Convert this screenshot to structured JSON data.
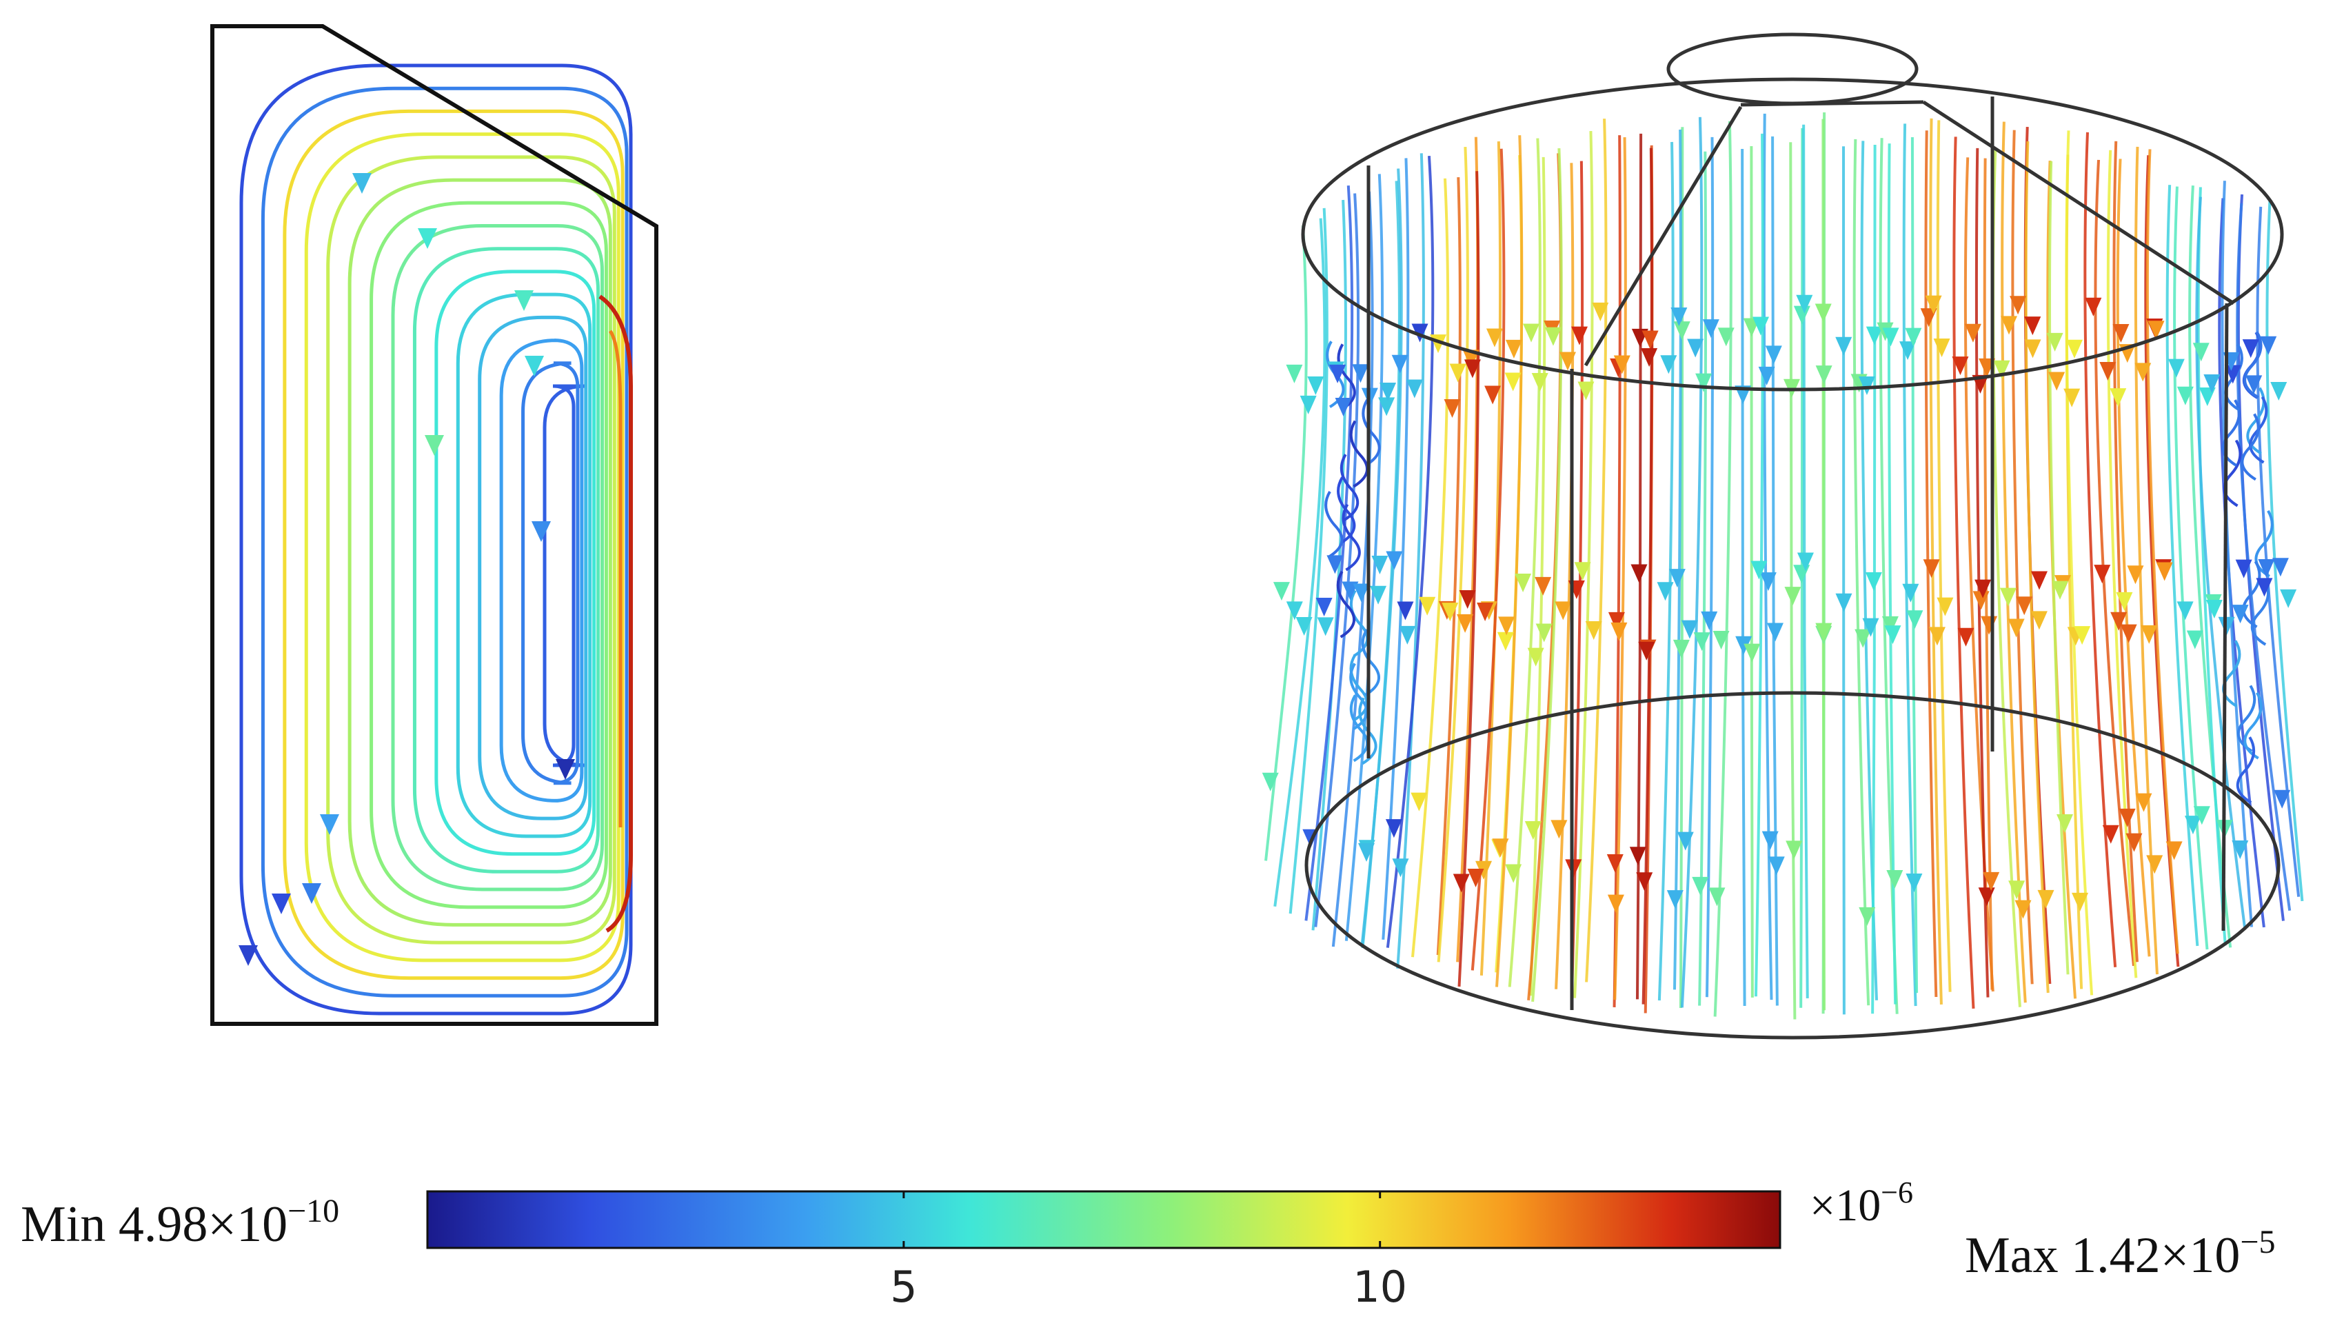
{
  "figure": {
    "left_panel": {
      "kind": "2D streamline plot"
    },
    "right_panel": {
      "kind": "3D streamline plot"
    }
  },
  "colorbar": {
    "min_label": "Min 4.98×10",
    "min_exp": "−10",
    "max_label": "Max 1.42×10",
    "max_exp": "−5",
    "multiplier_base": "×10",
    "multiplier_exp": "−6",
    "ticks": [
      {
        "value": 5,
        "label": "5"
      },
      {
        "value": 10,
        "label": "10"
      }
    ],
    "range": [
      0,
      14.2
    ],
    "colormap": [
      "#1a1a8c",
      "#2f4fe0",
      "#3b9ff0",
      "#3fe6d8",
      "#8ef07a",
      "#f2ee3a",
      "#f79a1e",
      "#d42a12",
      "#8a0a0a"
    ]
  }
}
